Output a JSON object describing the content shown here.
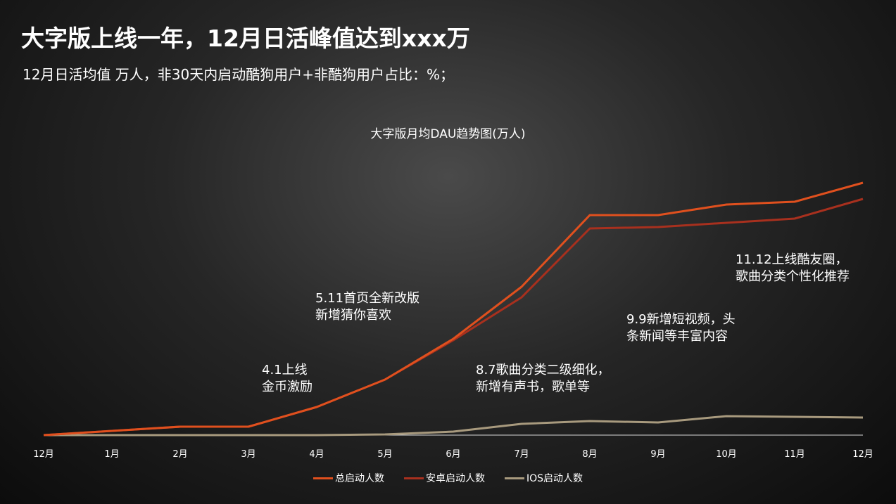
{
  "header": {
    "title": "大字版上线一年，12月日活峰值达到xxx万",
    "subtitle": "12月日活均值  万人，非30天内启动酷狗用户+非酷狗用户占比：%；"
  },
  "chart_data": {
    "type": "line",
    "title": "大字版月均DAU趋势图(万人)",
    "categories": [
      "12月",
      "1月",
      "2月",
      "3月",
      "4月",
      "5月",
      "6月",
      "7月",
      "8月",
      "9月",
      "10月",
      "11月",
      "12月"
    ],
    "series": [
      {
        "name": "总启动人数",
        "color": "#e0501e",
        "values": [
          0,
          6,
          12,
          12,
          40,
          79,
          137,
          211,
          313,
          313,
          328,
          332,
          359
        ]
      },
      {
        "name": "安卓启动人数",
        "color": "#a8301e",
        "values": [
          0,
          6,
          12,
          12,
          40,
          79,
          135,
          196,
          294,
          296,
          302,
          308,
          336
        ]
      },
      {
        "name": "IOS启动人数",
        "color": "#a89a7e",
        "values": [
          0,
          0,
          0,
          0,
          0,
          1,
          5,
          16,
          20,
          18,
          27,
          26,
          25
        ]
      }
    ],
    "annotations": [
      {
        "text": [
          "4.1上线",
          "金币激励"
        ]
      },
      {
        "text": [
          "5.11首页全新改版",
          "新增猜你喜欢"
        ]
      },
      {
        "text": [
          "8.7歌曲分类二级细化，",
          "新增有声书，歌单等"
        ]
      },
      {
        "text": [
          "9.9新增短视频，头",
          "条新闻等丰富内容"
        ]
      },
      {
        "text": [
          "11.12上线酷友圈，",
          "歌曲分类个性化推荐"
        ]
      }
    ],
    "legend": "bottom",
    "grid": false
  }
}
